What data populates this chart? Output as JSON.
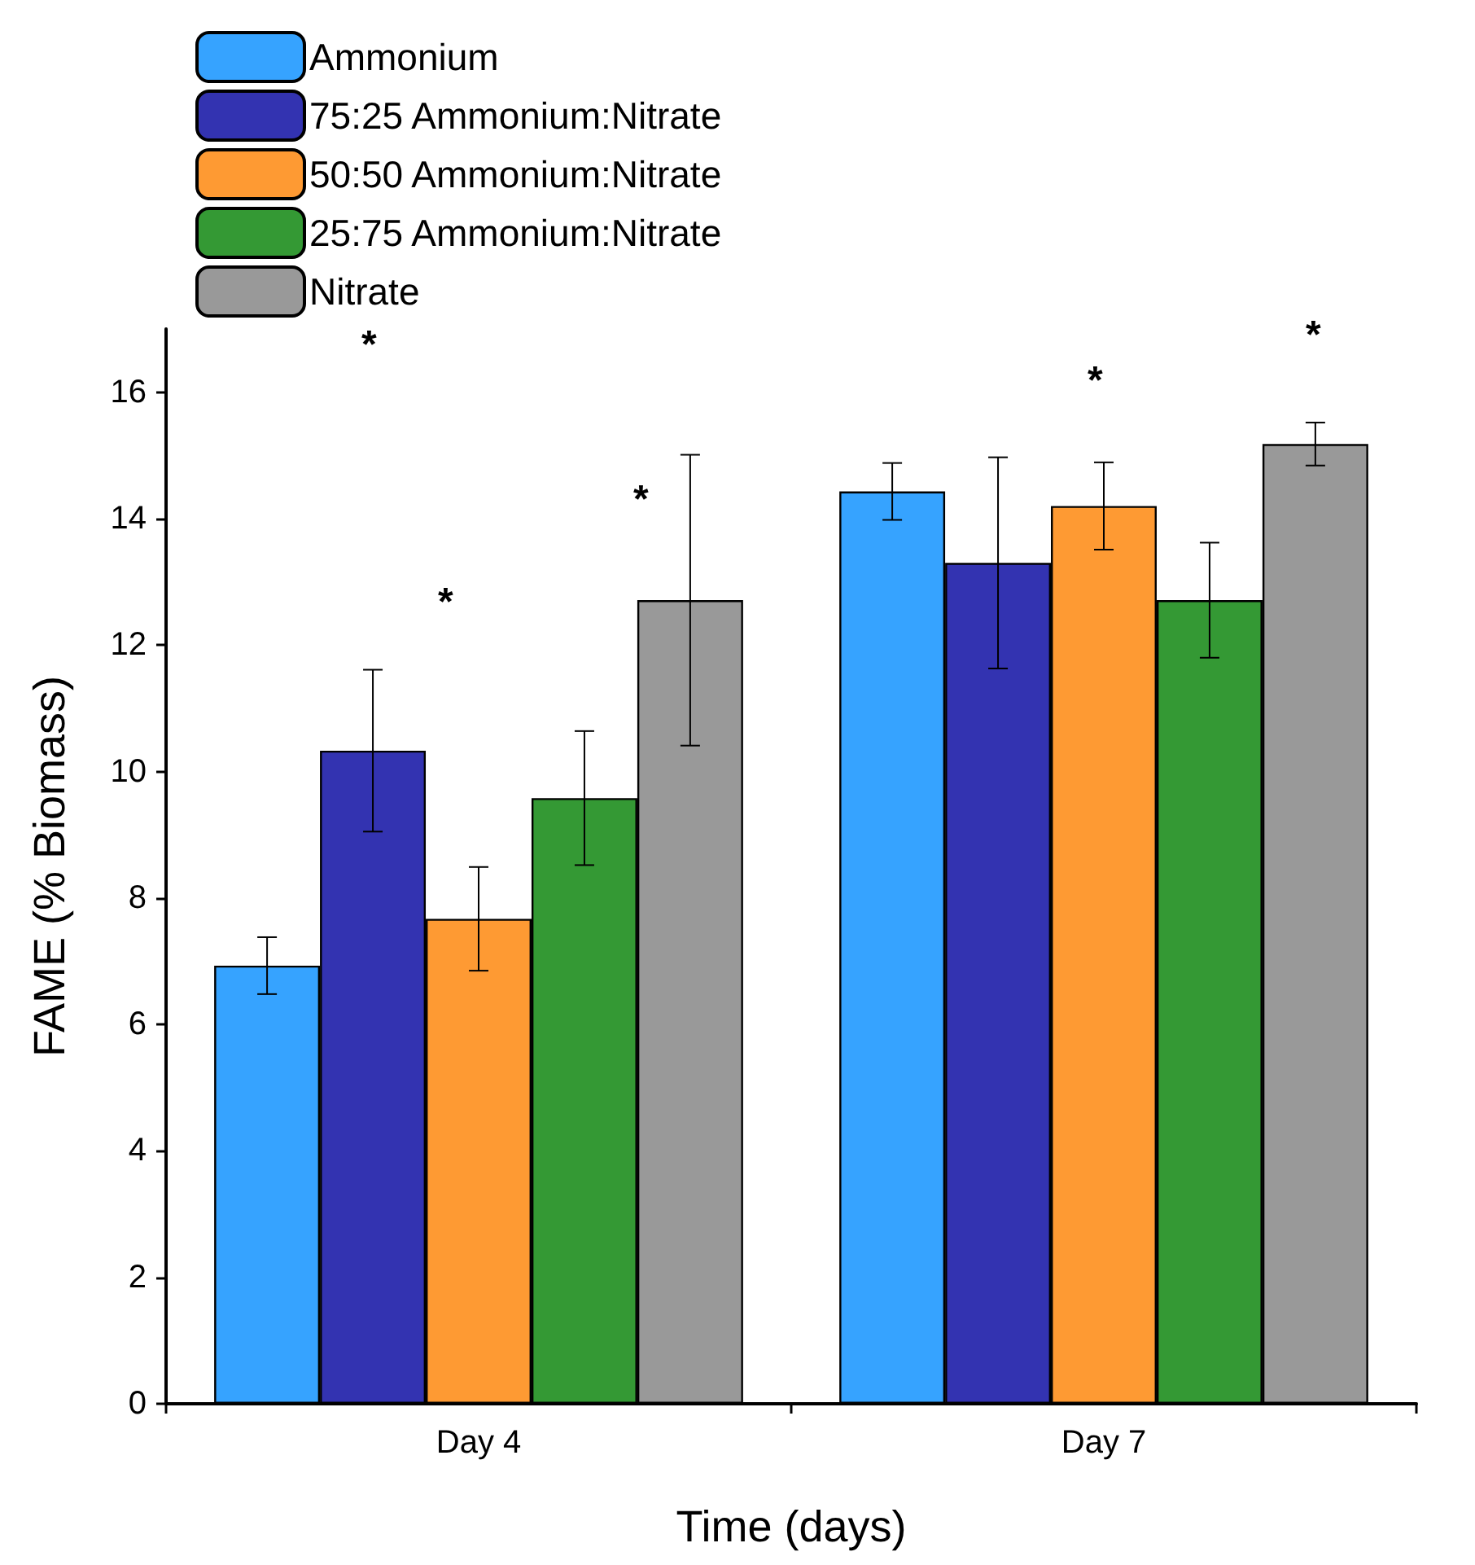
{
  "chart_data": {
    "type": "bar",
    "xlabel": "Time (days)",
    "ylabel": "FAME (% Biomass)",
    "categories": [
      "Day 4",
      "Day 7"
    ],
    "series": [
      {
        "name": "Ammonium",
        "color": "#36a3ff",
        "values": [
          6.93,
          14.43
        ],
        "errors": [
          0.45,
          0.45
        ]
      },
      {
        "name": "75:25 Ammonium:Nitrate",
        "color": "#3333b1",
        "values": [
          10.33,
          13.3
        ],
        "errors": [
          1.28,
          1.67
        ]
      },
      {
        "name": "50:50 Ammonium:Nitrate",
        "color": "#fe9a33",
        "values": [
          7.67,
          14.2
        ],
        "errors": [
          0.82,
          0.69
        ]
      },
      {
        "name": "25:75 Ammonium:Nitrate",
        "color": "#349934",
        "values": [
          9.58,
          12.71
        ],
        "errors": [
          1.06,
          0.91
        ]
      },
      {
        "name": "Nitrate",
        "color": "#999999",
        "values": [
          12.71,
          15.18
        ],
        "errors": [
          2.3,
          0.34
        ]
      }
    ],
    "ylim": [
      0,
      17
    ],
    "yticks": [
      0,
      2,
      4,
      6,
      8,
      10,
      12,
      14,
      16
    ],
    "grid": false,
    "legend": "top left",
    "annotations": [
      "*",
      "*",
      "*",
      "*",
      "*"
    ]
  }
}
